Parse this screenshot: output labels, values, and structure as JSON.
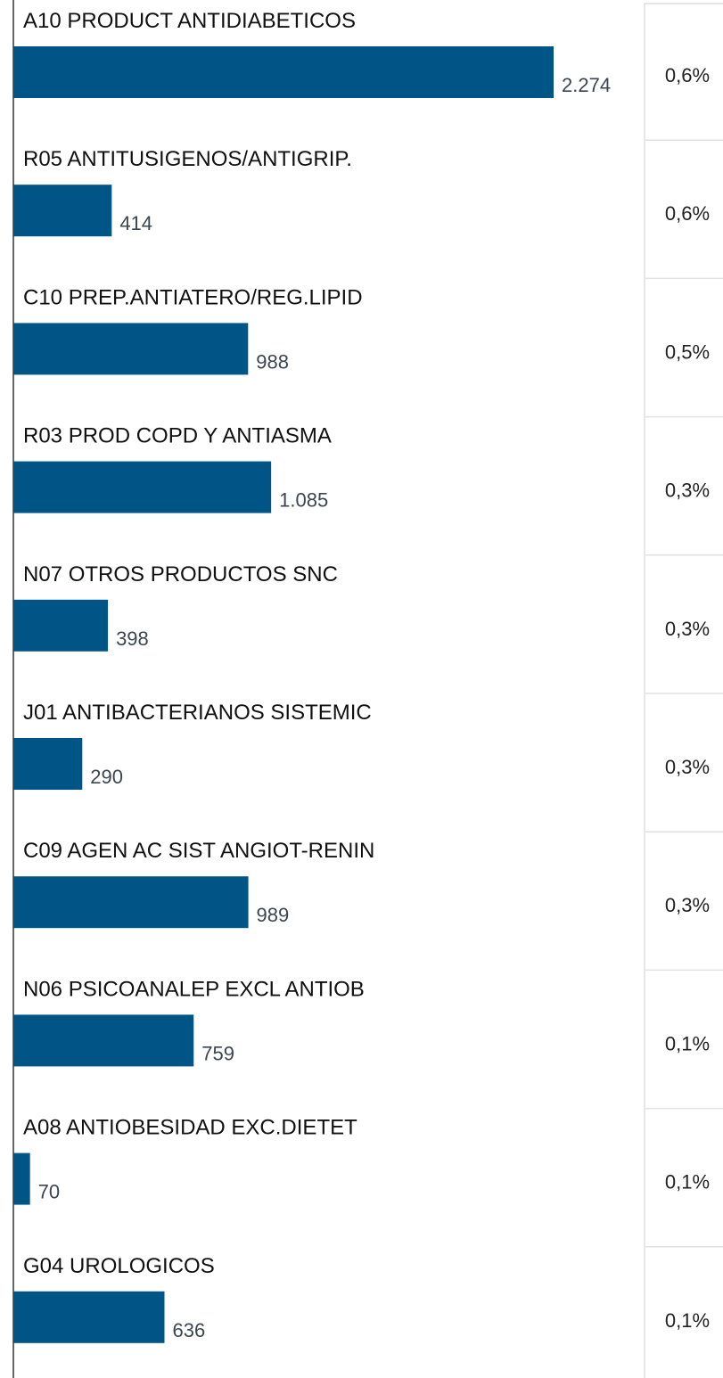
{
  "chart_data": {
    "type": "bar",
    "orientation": "horizontal",
    "color": "#005587",
    "categories": [
      "A10 PRODUCT ANTIDIABETICOS",
      "R05 ANTITUSIGENOS/ANTIGRIP.",
      "C10 PREP.ANTIATERO/REG.LIPID",
      "R03 PROD COPD Y ANTIASMA",
      "N07 OTROS PRODUCTOS SNC",
      "J01 ANTIBACTERIANOS SISTEMIC",
      "C09 AGEN AC SIST ANGIOT-RENIN",
      "N06 PSICOANALEP EXCL ANTIOB",
      "A08 ANTIOBESIDAD EXC.DIETET",
      "G04 UROLOGICOS"
    ],
    "values": [
      2274,
      414,
      988,
      1085,
      398,
      290,
      989,
      759,
      70,
      636
    ],
    "value_labels": [
      "2.274",
      "414",
      "988",
      "1.085",
      "398",
      "290",
      "989",
      "759",
      "70",
      "636"
    ],
    "share_labels": [
      "0,6%",
      "0,6%",
      "0,5%",
      "0,3%",
      "0,3%",
      "0,3%",
      "0,3%",
      "0,1%",
      "0,1%",
      "0,1%"
    ]
  }
}
